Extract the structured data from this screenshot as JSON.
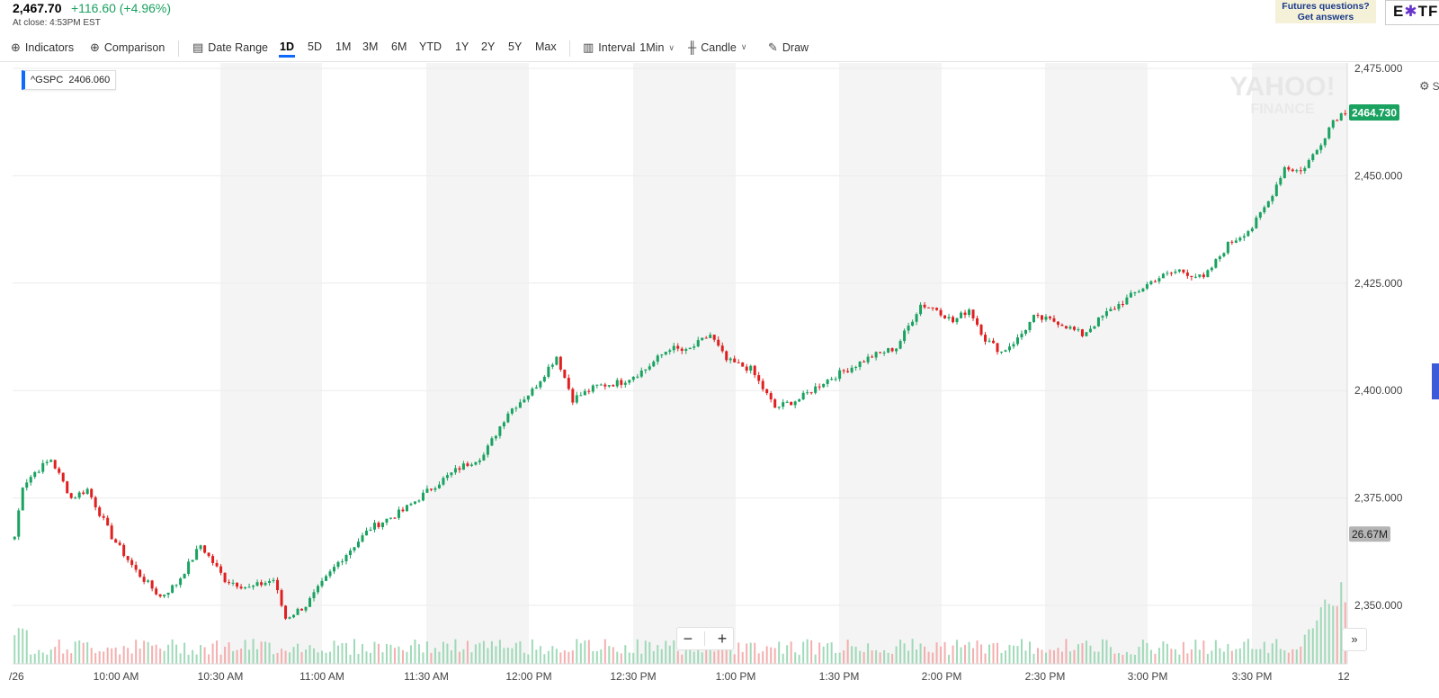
{
  "quote": {
    "price": "2,467.70",
    "change": "+116.60 (+4.96%)",
    "close_text": "At close: 4:53PM EST",
    "change_color": "#1aa260"
  },
  "ad": {
    "line1": "Futures questions?",
    "line2": "Get answers"
  },
  "brand": {
    "pre": "E",
    "mark": "✱",
    "post": "TF"
  },
  "toolbar": {
    "indicators": "Indicators",
    "comparison": "Comparison",
    "date_range": "Date Range",
    "ranges": [
      "1D",
      "5D",
      "1M",
      "3M",
      "6M",
      "YTD",
      "1Y",
      "2Y",
      "5Y",
      "Max"
    ],
    "active_range": "1D",
    "interval_label": "Interval",
    "interval_value": "1Min",
    "chart_type": "Candle",
    "draw": "Draw",
    "settings_partial": "S"
  },
  "ticker_tag": {
    "symbol": "^GSPC",
    "value": "2406.060"
  },
  "watermark": {
    "line1": "YAHOO!",
    "line2": "FINANCE"
  },
  "zoom": {
    "minus": "−",
    "plus": "+"
  },
  "expand_label": "»",
  "chart_data": {
    "type": "candlestick",
    "symbol": "^GSPC",
    "y_axis_ticks": [
      "2,475.000",
      "2,450.000",
      "2,425.000",
      "2,400.000",
      "2,375.000",
      "2,350.000"
    ],
    "ylim": [
      2341,
      2477
    ],
    "x_axis_ticks": [
      "/26",
      "10:00 AM",
      "10:30 AM",
      "11:00 AM",
      "11:30 AM",
      "12:00 PM",
      "12:30 PM",
      "1:00 PM",
      "1:30 PM",
      "2:00 PM",
      "2:30 PM",
      "3:00 PM",
      "3:30 PM",
      "12"
    ],
    "last_price_label": "2464.730",
    "last_price": 2464.73,
    "volume_label": "26.67M",
    "volume_level": 2366.5,
    "up_color": "#1aa260",
    "down_color": "#e02020",
    "anchors": [
      [
        0,
        2366
      ],
      [
        2,
        2378
      ],
      [
        5,
        2381
      ],
      [
        9,
        2384
      ],
      [
        14,
        2375
      ],
      [
        18,
        2377
      ],
      [
        24,
        2366
      ],
      [
        30,
        2358
      ],
      [
        36,
        2352
      ],
      [
        40,
        2355
      ],
      [
        46,
        2364
      ],
      [
        52,
        2356
      ],
      [
        58,
        2354
      ],
      [
        64,
        2356
      ],
      [
        67,
        2347
      ],
      [
        72,
        2350
      ],
      [
        80,
        2360
      ],
      [
        88,
        2368
      ],
      [
        96,
        2372
      ],
      [
        104,
        2378
      ],
      [
        110,
        2382
      ],
      [
        116,
        2385
      ],
      [
        122,
        2395
      ],
      [
        128,
        2400
      ],
      [
        134,
        2408
      ],
      [
        138,
        2398
      ],
      [
        144,
        2401
      ],
      [
        150,
        2402
      ],
      [
        156,
        2405
      ],
      [
        162,
        2410
      ],
      [
        166,
        2409
      ],
      [
        172,
        2413
      ],
      [
        176,
        2407
      ],
      [
        182,
        2405
      ],
      [
        188,
        2396
      ],
      [
        194,
        2398
      ],
      [
        200,
        2402
      ],
      [
        206,
        2405
      ],
      [
        212,
        2408
      ],
      [
        218,
        2410
      ],
      [
        224,
        2420
      ],
      [
        228,
        2419
      ],
      [
        232,
        2416
      ],
      [
        236,
        2419
      ],
      [
        240,
        2412
      ],
      [
        244,
        2409
      ],
      [
        248,
        2412
      ],
      [
        252,
        2417
      ],
      [
        258,
        2416
      ],
      [
        264,
        2413
      ],
      [
        270,
        2418
      ],
      [
        276,
        2422
      ],
      [
        282,
        2426
      ],
      [
        288,
        2428
      ],
      [
        294,
        2426
      ],
      [
        300,
        2434
      ],
      [
        306,
        2438
      ],
      [
        310,
        2444
      ],
      [
        314,
        2452
      ],
      [
        318,
        2451
      ],
      [
        322,
        2456
      ],
      [
        326,
        2463
      ],
      [
        329,
        2465
      ]
    ]
  }
}
